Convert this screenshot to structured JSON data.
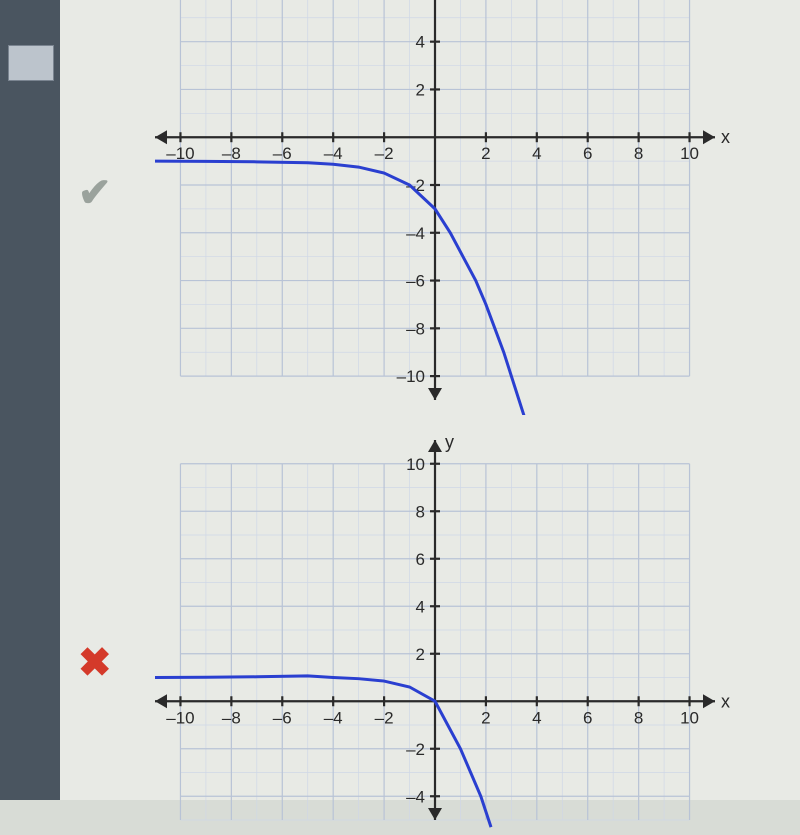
{
  "answers": [
    {
      "mark": "✔",
      "mark_class": "check",
      "graph_key": "graph_a"
    },
    {
      "mark": "✖",
      "mark_class": "cross",
      "graph_key": "graph_b"
    }
  ],
  "common": {
    "xlim": [
      -11,
      11
    ],
    "ylim": [
      -11,
      11
    ],
    "major_step": 2,
    "minor_step": 1,
    "x_ticks": [
      -10,
      -8,
      -6,
      -4,
      -2,
      2,
      4,
      6,
      8,
      10
    ],
    "y_ticks_pos": [
      2,
      4,
      6,
      8,
      10
    ],
    "y_ticks_neg": [
      -2,
      -4,
      -6,
      -8,
      -10
    ],
    "x_axis_label": "x",
    "y_axis_label": "y",
    "grid_color": "#b8c3d6",
    "grid_minor_color": "#cfd7e6",
    "axis_color": "#2a2a2a",
    "curve_color": "#2a3fd0",
    "bg_color": "#e8eae5",
    "tick_fontsize": 17
  },
  "graph_a": {
    "visible_ylim": [
      -11,
      7
    ],
    "curve_points": [
      [
        -11,
        -1
      ],
      [
        -9,
        -1.01
      ],
      [
        -7,
        -1.03
      ],
      [
        -5,
        -1.07
      ],
      [
        -4,
        -1.13
      ],
      [
        -3,
        -1.25
      ],
      [
        -2,
        -1.5
      ],
      [
        -1,
        -2
      ],
      [
        0,
        -3
      ],
      [
        0.6,
        -4
      ],
      [
        1.1,
        -5
      ],
      [
        1.6,
        -6
      ],
      [
        2,
        -7
      ],
      [
        2.35,
        -8
      ],
      [
        2.7,
        -9
      ],
      [
        3.0,
        -10
      ],
      [
        3.3,
        -11
      ],
      [
        3.6,
        -12
      ]
    ]
  },
  "graph_b": {
    "visible_ylim": [
      -5,
      11
    ],
    "curve_points": [
      [
        -11,
        1
      ],
      [
        -9,
        1.01
      ],
      [
        -7,
        1.03
      ],
      [
        -5,
        1.07
      ],
      [
        -4,
        1.0
      ],
      [
        -3,
        0.95
      ],
      [
        -2,
        0.85
      ],
      [
        -1,
        0.6
      ],
      [
        0,
        0
      ],
      [
        0.5,
        -1
      ],
      [
        1,
        -2
      ],
      [
        1.4,
        -3
      ],
      [
        1.8,
        -4
      ],
      [
        2.2,
        -5.3
      ]
    ]
  }
}
